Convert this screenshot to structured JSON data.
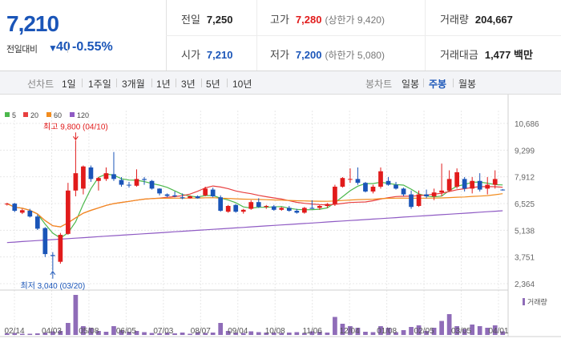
{
  "header": {
    "price": "7,210",
    "change_label": "전일대비",
    "change_arrow": "▼",
    "change_value": "40",
    "change_pct": "-0.55%",
    "stats": {
      "prev_close": {
        "label": "전일",
        "value": "7,250"
      },
      "high": {
        "label": "고가",
        "value": "7,280",
        "sub": "(상한가 9,420)"
      },
      "volume": {
        "label": "거래량",
        "value": "204,667"
      },
      "open": {
        "label": "시가",
        "value": "7,210"
      },
      "low": {
        "label": "저가",
        "value": "7,200",
        "sub": "(하한가 5,080)"
      },
      "turnover": {
        "label": "거래대금",
        "value": "1,477 백만"
      }
    }
  },
  "toolbar": {
    "line_chart_label": "선차트",
    "line_periods": [
      "1일",
      "1주일",
      "3개월",
      "1년",
      "3년",
      "5년",
      "10년"
    ],
    "candle_chart_label": "봉차트",
    "candle_periods": [
      "일봉",
      "주봉",
      "월봉"
    ],
    "active_candle": "주봉"
  },
  "colors": {
    "up": "#e11b1b",
    "down": "#1a55b8",
    "ma5": "#4cb84c",
    "ma20": "#e84040",
    "ma60": "#f28c1e",
    "ma120": "#8f5bc4",
    "volume": "#8f6cb8"
  },
  "chart_data": {
    "type": "candlestick",
    "interval": "weekly",
    "legend": [
      "5",
      "20",
      "60",
      "120"
    ],
    "y_ticks": [
      "10,686",
      "9,299",
      "7,912",
      "6,525",
      "5,138",
      "3,751",
      "2,364"
    ],
    "y_range": [
      2364,
      10686
    ],
    "x_ticks": [
      "02/14",
      "04/03",
      "05/08",
      "06/05",
      "07/03",
      "08/07",
      "09/04",
      "10/08",
      "11/06",
      "12/04",
      "01/08",
      "02/05",
      "03/05",
      "04/01"
    ],
    "annotations": {
      "high": "최고 9,800 (04/10)",
      "low": "최저 3,040 (03/20)"
    },
    "volume_label": "거래량",
    "candles": [
      {
        "o": 6480,
        "h": 6560,
        "l": 6420,
        "c": 6520
      },
      {
        "o": 6520,
        "h": 6560,
        "l": 6080,
        "c": 6150
      },
      {
        "o": 6050,
        "h": 6250,
        "l": 5980,
        "c": 6180
      },
      {
        "o": 6150,
        "h": 6250,
        "l": 5800,
        "c": 5850
      },
      {
        "o": 5850,
        "h": 5950,
        "l": 5150,
        "c": 5220
      },
      {
        "o": 5250,
        "h": 5300,
        "l": 3750,
        "c": 3900
      },
      {
        "o": 3850,
        "h": 4000,
        "l": 3040,
        "c": 3800
      },
      {
        "o": 3500,
        "h": 5000,
        "l": 3400,
        "c": 4900
      },
      {
        "o": 4950,
        "h": 7600,
        "l": 4900,
        "c": 7200
      },
      {
        "o": 7200,
        "h": 9800,
        "l": 6900,
        "c": 8100
      },
      {
        "o": 7300,
        "h": 8500,
        "l": 7000,
        "c": 8450
      },
      {
        "o": 8400,
        "h": 8500,
        "l": 7650,
        "c": 7800
      },
      {
        "o": 7700,
        "h": 7900,
        "l": 7200,
        "c": 7850
      },
      {
        "o": 7800,
        "h": 8400,
        "l": 7700,
        "c": 8100
      },
      {
        "o": 8050,
        "h": 9200,
        "l": 7700,
        "c": 7800
      },
      {
        "o": 7750,
        "h": 7900,
        "l": 7400,
        "c": 7500
      },
      {
        "o": 7500,
        "h": 7650,
        "l": 7350,
        "c": 7480
      },
      {
        "o": 7450,
        "h": 8300,
        "l": 7400,
        "c": 7800
      },
      {
        "o": 7800,
        "h": 7900,
        "l": 7500,
        "c": 7750
      },
      {
        "o": 7700,
        "h": 7750,
        "l": 7250,
        "c": 7300
      },
      {
        "o": 7300,
        "h": 7320,
        "l": 6950,
        "c": 7050
      },
      {
        "o": 7000,
        "h": 7050,
        "l": 6850,
        "c": 6920
      },
      {
        "o": 6950,
        "h": 7150,
        "l": 6850,
        "c": 6900
      },
      {
        "o": 6850,
        "h": 7050,
        "l": 6750,
        "c": 6800
      },
      {
        "o": 6800,
        "h": 6950,
        "l": 6780,
        "c": 6900
      },
      {
        "o": 6900,
        "h": 6950,
        "l": 6780,
        "c": 6800
      },
      {
        "o": 6950,
        "h": 7400,
        "l": 6900,
        "c": 7300
      },
      {
        "o": 7250,
        "h": 7350,
        "l": 6850,
        "c": 6900
      },
      {
        "o": 6850,
        "h": 6950,
        "l": 6100,
        "c": 6150
      },
      {
        "o": 6100,
        "h": 6450,
        "l": 6050,
        "c": 6400
      },
      {
        "o": 6450,
        "h": 6500,
        "l": 6050,
        "c": 6100
      },
      {
        "o": 6100,
        "h": 6250,
        "l": 6000,
        "c": 6200
      },
      {
        "o": 6250,
        "h": 6700,
        "l": 6200,
        "c": 6600
      },
      {
        "o": 6600,
        "h": 6800,
        "l": 6300,
        "c": 6350
      },
      {
        "o": 6350,
        "h": 6450,
        "l": 6250,
        "c": 6400
      },
      {
        "o": 6380,
        "h": 6450,
        "l": 6150,
        "c": 6200
      },
      {
        "o": 6200,
        "h": 6350,
        "l": 6150,
        "c": 6300
      },
      {
        "o": 6300,
        "h": 6400,
        "l": 6100,
        "c": 6150
      },
      {
        "o": 6150,
        "h": 6250,
        "l": 6000,
        "c": 6050
      },
      {
        "o": 6050,
        "h": 6350,
        "l": 6000,
        "c": 6300
      },
      {
        "o": 6300,
        "h": 6700,
        "l": 6250,
        "c": 6250
      },
      {
        "o": 6300,
        "h": 6450,
        "l": 6200,
        "c": 6400
      },
      {
        "o": 6400,
        "h": 6550,
        "l": 6300,
        "c": 6500
      },
      {
        "o": 6500,
        "h": 7500,
        "l": 6400,
        "c": 7400
      },
      {
        "o": 7400,
        "h": 7900,
        "l": 7350,
        "c": 7850
      },
      {
        "o": 7800,
        "h": 8350,
        "l": 7600,
        "c": 7800
      },
      {
        "o": 7800,
        "h": 8400,
        "l": 7500,
        "c": 7600
      },
      {
        "o": 7600,
        "h": 7650,
        "l": 7100,
        "c": 7150
      },
      {
        "o": 7150,
        "h": 7500,
        "l": 7050,
        "c": 7400
      },
      {
        "o": 7400,
        "h": 8400,
        "l": 7300,
        "c": 8200
      },
      {
        "o": 7700,
        "h": 7900,
        "l": 7450,
        "c": 7500
      },
      {
        "o": 7500,
        "h": 7650,
        "l": 7250,
        "c": 7300
      },
      {
        "o": 7300,
        "h": 7350,
        "l": 6900,
        "c": 7000
      },
      {
        "o": 7000,
        "h": 7200,
        "l": 6250,
        "c": 6350
      },
      {
        "o": 6400,
        "h": 7200,
        "l": 6350,
        "c": 7000
      },
      {
        "o": 7000,
        "h": 7250,
        "l": 6800,
        "c": 6900
      },
      {
        "o": 6900,
        "h": 7300,
        "l": 6700,
        "c": 7100
      },
      {
        "o": 7100,
        "h": 8600,
        "l": 6900,
        "c": 7200
      },
      {
        "o": 7200,
        "h": 8250,
        "l": 7150,
        "c": 7800
      },
      {
        "o": 7400,
        "h": 8350,
        "l": 7300,
        "c": 8150
      },
      {
        "o": 7800,
        "h": 7900,
        "l": 7150,
        "c": 7300
      },
      {
        "o": 7300,
        "h": 7900,
        "l": 7050,
        "c": 7700
      },
      {
        "o": 7700,
        "h": 8100,
        "l": 7150,
        "c": 7250
      },
      {
        "o": 7300,
        "h": 7900,
        "l": 7000,
        "c": 7500
      },
      {
        "o": 7500,
        "h": 8250,
        "l": 7300,
        "c": 7800
      },
      {
        "o": 7250,
        "h": 7280,
        "l": 7200,
        "c": 7210
      }
    ],
    "volumes": [
      4,
      5,
      3,
      3,
      4,
      6,
      9,
      10,
      30,
      100,
      22,
      18,
      10,
      8,
      22,
      12,
      8,
      10,
      7,
      5,
      4,
      6,
      4,
      6,
      3,
      7,
      5,
      6,
      30,
      10,
      6,
      5,
      9,
      7,
      6,
      6,
      5,
      6,
      7,
      5,
      9,
      8,
      6,
      45,
      28,
      22,
      18,
      8,
      7,
      22,
      18,
      7,
      12,
      20,
      24,
      10,
      18,
      35,
      52,
      22,
      15,
      26,
      22,
      18,
      24,
      9
    ],
    "volume_max": 100
  }
}
